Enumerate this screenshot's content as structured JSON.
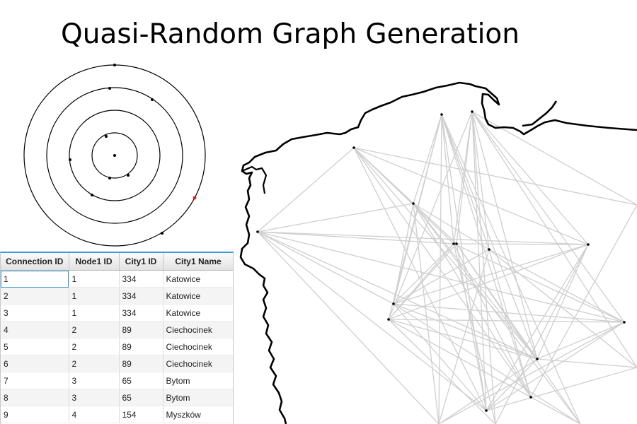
{
  "page": {
    "title": "Quasi-Random Graph Generation"
  },
  "colors": {
    "edge": "#cfcfcf",
    "coast": "#000000",
    "node": "#000000",
    "ring": "#000000",
    "highlight_node": "#d62020",
    "table_header_top": "#fbfbfb",
    "table_header_bottom": "#e2e2e2",
    "table_focus": "#3c9bd6"
  },
  "table": {
    "columns": [
      "Connection ID",
      "Node1 ID",
      "City1 ID",
      "City1 Name"
    ],
    "rows": [
      [
        "1",
        "1",
        "334",
        "Katowice"
      ],
      [
        "2",
        "1",
        "334",
        "Katowice"
      ],
      [
        "3",
        "1",
        "334",
        "Katowice"
      ],
      [
        "4",
        "2",
        "89",
        "Ciechocinek"
      ],
      [
        "5",
        "2",
        "89",
        "Ciechocinek"
      ],
      [
        "6",
        "2",
        "89",
        "Ciechocinek"
      ],
      [
        "7",
        "3",
        "65",
        "Bytom"
      ],
      [
        "8",
        "3",
        "65",
        "Bytom"
      ],
      [
        "9",
        "4",
        "154",
        "Myszków"
      ]
    ]
  }
}
